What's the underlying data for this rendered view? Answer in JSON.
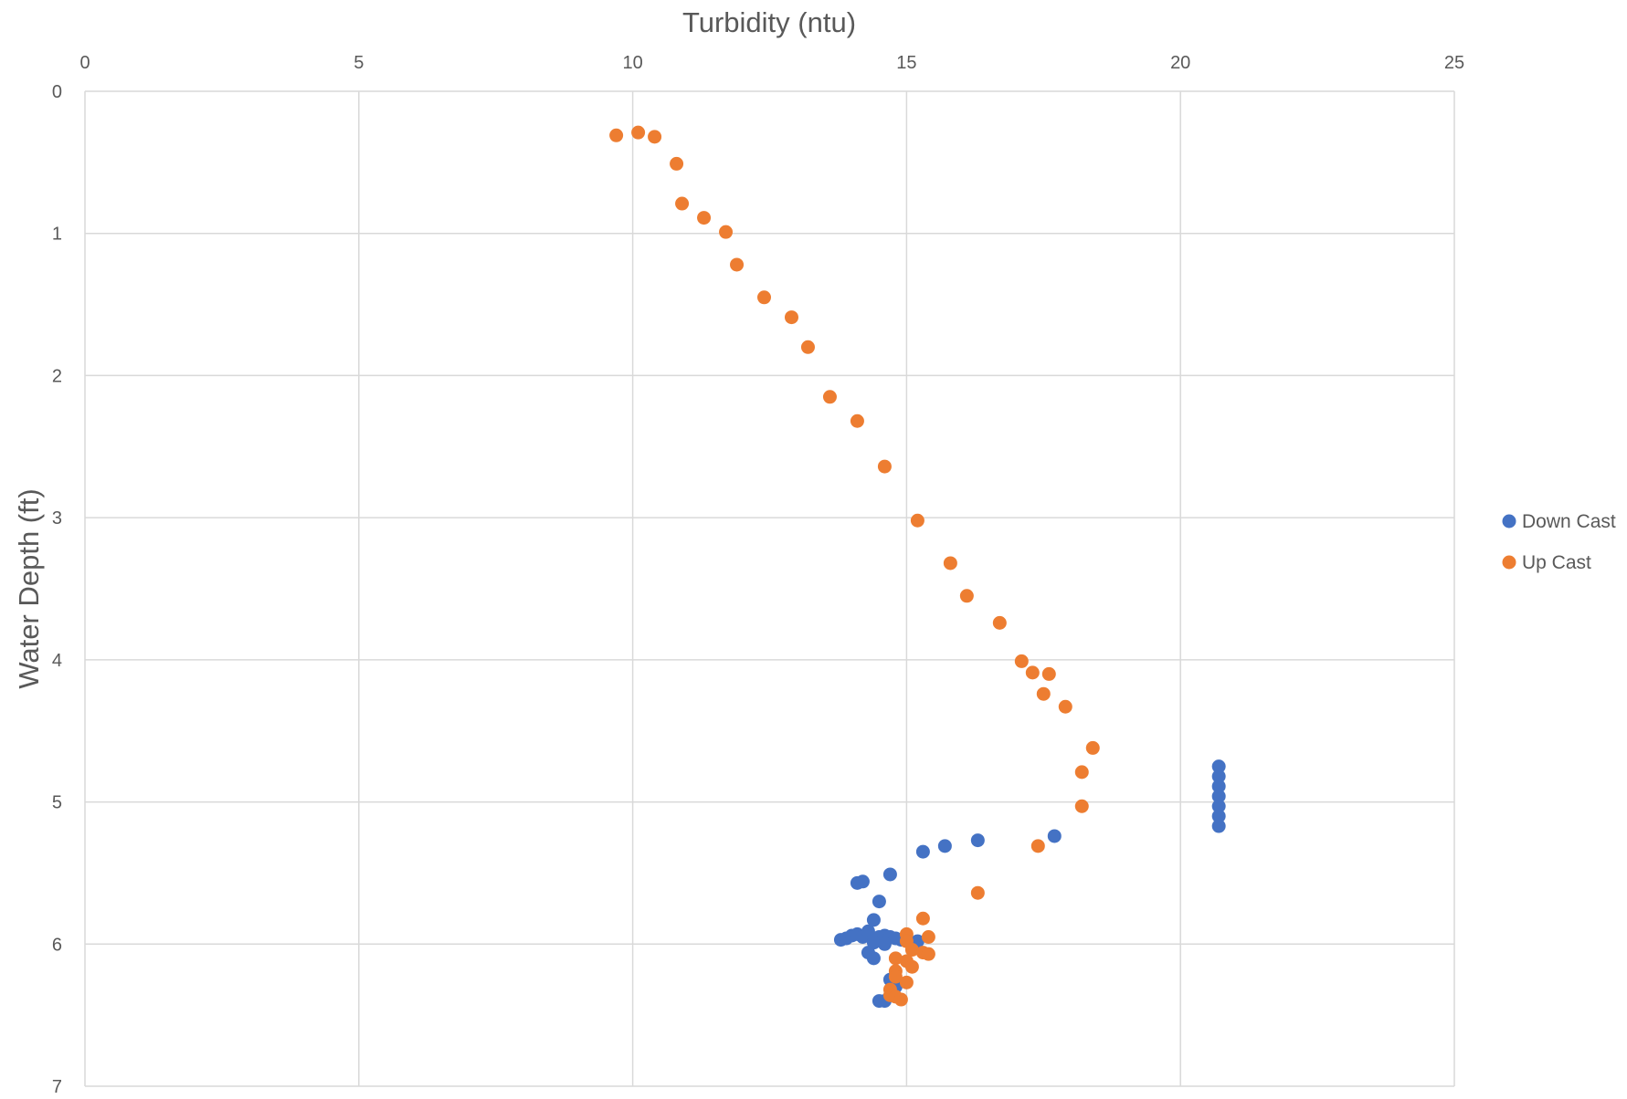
{
  "chart_data": {
    "type": "scatter",
    "title": "",
    "xlabel": "Turbidity (ntu)",
    "ylabel": "Water Depth (ft)",
    "xlim": [
      0,
      25
    ],
    "ylim": [
      0,
      7
    ],
    "y_axis_inverted": true,
    "x_axis_position": "top",
    "x_ticks": [
      0,
      5,
      10,
      15,
      20,
      25
    ],
    "y_ticks": [
      0,
      1,
      2,
      3,
      4,
      5,
      6,
      7
    ],
    "grid": true,
    "legend_position": "right",
    "series": [
      {
        "name": "Down Cast",
        "color": "#4472C4",
        "points": [
          [
            20.7,
            4.75
          ],
          [
            20.7,
            4.82
          ],
          [
            20.7,
            4.89
          ],
          [
            20.7,
            4.96
          ],
          [
            20.7,
            5.03
          ],
          [
            20.7,
            5.1
          ],
          [
            20.7,
            5.17
          ],
          [
            17.7,
            5.24
          ],
          [
            16.3,
            5.27
          ],
          [
            15.7,
            5.31
          ],
          [
            15.3,
            5.35
          ],
          [
            14.7,
            5.51
          ],
          [
            14.2,
            5.56
          ],
          [
            14.1,
            5.57
          ],
          [
            14.5,
            5.7
          ],
          [
            14.4,
            5.83
          ],
          [
            13.8,
            5.97
          ],
          [
            13.9,
            5.96
          ],
          [
            14.0,
            5.94
          ],
          [
            14.1,
            5.93
          ],
          [
            14.2,
            5.95
          ],
          [
            14.3,
            5.91
          ],
          [
            14.4,
            5.97
          ],
          [
            14.5,
            5.95
          ],
          [
            14.6,
            5.94
          ],
          [
            14.7,
            5.95
          ],
          [
            14.8,
            5.96
          ],
          [
            14.9,
            5.97
          ],
          [
            15.2,
            5.98
          ],
          [
            14.4,
            5.99
          ],
          [
            14.6,
            6.0
          ],
          [
            14.3,
            6.06
          ],
          [
            14.4,
            6.1
          ],
          [
            14.7,
            6.25
          ],
          [
            14.8,
            6.3
          ],
          [
            14.5,
            6.4
          ],
          [
            14.6,
            6.4
          ]
        ]
      },
      {
        "name": "Up Cast",
        "color": "#ED7D31",
        "points": [
          [
            9.7,
            0.31
          ],
          [
            10.1,
            0.29
          ],
          [
            10.4,
            0.32
          ],
          [
            10.8,
            0.51
          ],
          [
            10.9,
            0.79
          ],
          [
            11.3,
            0.89
          ],
          [
            11.7,
            0.99
          ],
          [
            11.9,
            1.22
          ],
          [
            12.4,
            1.45
          ],
          [
            12.9,
            1.59
          ],
          [
            13.2,
            1.8
          ],
          [
            13.6,
            2.15
          ],
          [
            14.1,
            2.32
          ],
          [
            14.6,
            2.64
          ],
          [
            15.2,
            3.02
          ],
          [
            15.8,
            3.32
          ],
          [
            16.1,
            3.55
          ],
          [
            16.7,
            3.74
          ],
          [
            17.1,
            4.01
          ],
          [
            17.3,
            4.09
          ],
          [
            17.6,
            4.1
          ],
          [
            17.5,
            4.24
          ],
          [
            17.9,
            4.33
          ],
          [
            18.4,
            4.62
          ],
          [
            18.2,
            4.79
          ],
          [
            18.2,
            5.03
          ],
          [
            17.4,
            5.31
          ],
          [
            16.3,
            5.64
          ],
          [
            15.3,
            5.82
          ],
          [
            15.0,
            5.93
          ],
          [
            15.4,
            5.95
          ],
          [
            15.0,
            5.98
          ],
          [
            15.1,
            6.04
          ],
          [
            15.3,
            6.06
          ],
          [
            15.4,
            6.07
          ],
          [
            14.8,
            6.1
          ],
          [
            15.0,
            6.12
          ],
          [
            15.1,
            6.16
          ],
          [
            14.8,
            6.19
          ],
          [
            14.8,
            6.23
          ],
          [
            15.0,
            6.27
          ],
          [
            14.7,
            6.32
          ],
          [
            14.7,
            6.36
          ],
          [
            14.8,
            6.37
          ],
          [
            14.9,
            6.39
          ]
        ]
      }
    ]
  }
}
